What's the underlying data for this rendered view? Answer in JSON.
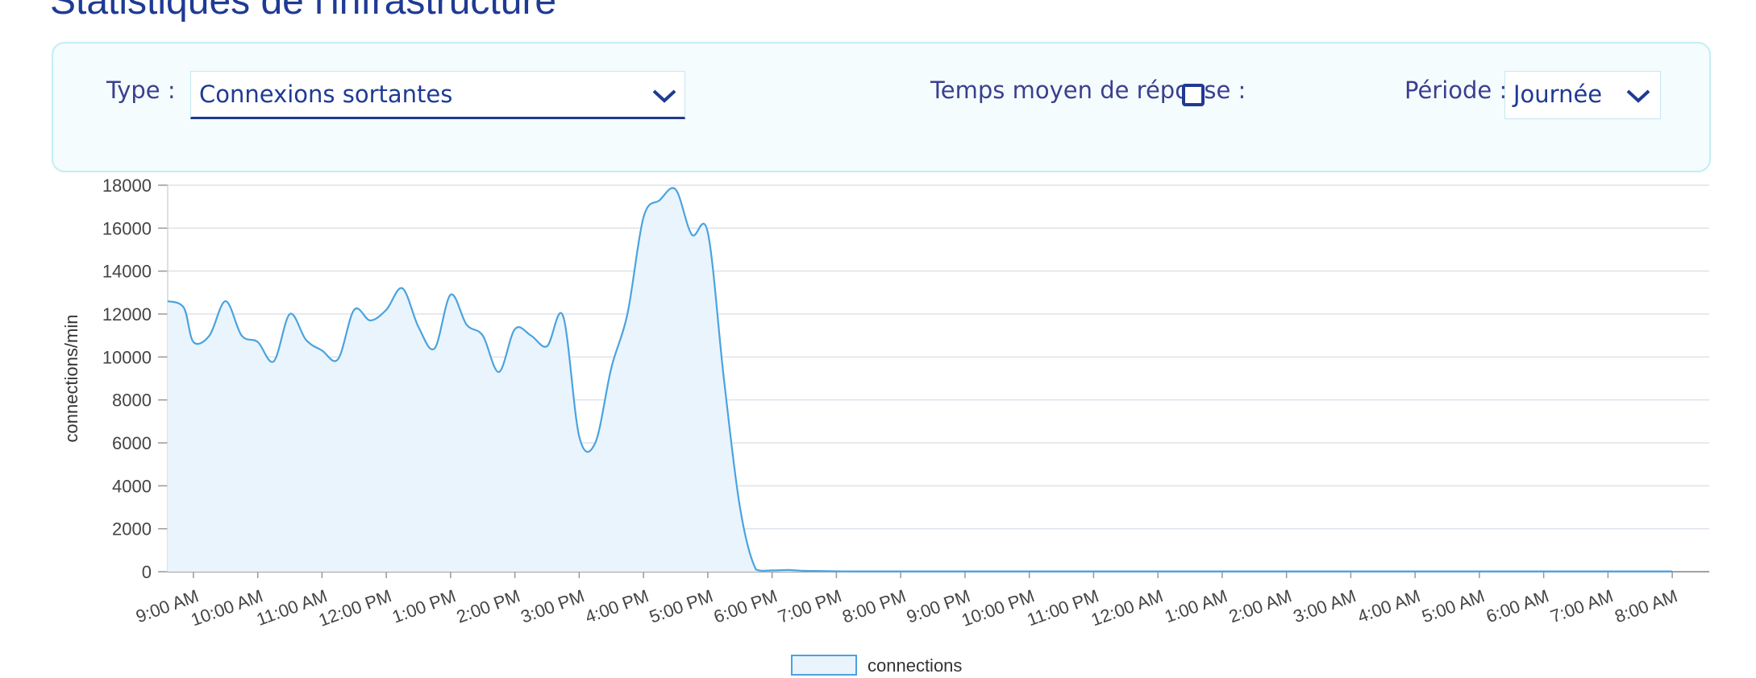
{
  "page": {
    "title": "Statistiques de l'infrastructure"
  },
  "filters": {
    "type": {
      "label": "Type :",
      "value": "Connexions sortantes"
    },
    "response_time": {
      "label": "Temps moyen de réponse :",
      "checked": false
    },
    "period": {
      "label": "Période :",
      "value": "Journée"
    }
  },
  "colors": {
    "accent": "#1f3a93",
    "line": "#4aa3df",
    "fill": "#eaf4fd",
    "panel": "#f4fcfd"
  },
  "icons": {
    "dropdown": "chevron-down-icon",
    "checkbox": "checkbox-icon"
  },
  "chart_data": {
    "type": "area",
    "ylabel": "connections/min",
    "ylim": [
      0,
      18000
    ],
    "yticks": [
      0,
      2000,
      4000,
      6000,
      8000,
      10000,
      12000,
      14000,
      16000,
      18000
    ],
    "x_tick_labels": [
      "9:00 AM",
      "10:00 AM",
      "11:00 AM",
      "12:00 PM",
      "1:00 PM",
      "2:00 PM",
      "3:00 PM",
      "4:00 PM",
      "5:00 PM",
      "6:00 PM",
      "7:00 PM",
      "8:00 PM",
      "9:00 PM",
      "10:00 PM",
      "11:00 PM",
      "12:00 AM",
      "1:00 AM",
      "2:00 AM",
      "3:00 AM",
      "4:00 AM",
      "5:00 AM",
      "6:00 AM",
      "7:00 AM",
      "8:00 AM"
    ],
    "legend": "bottom-center",
    "grid": true,
    "series": [
      {
        "name": "connections",
        "x_hours": [
          8.6,
          8.85,
          9.0,
          9.25,
          9.5,
          9.75,
          10.0,
          10.25,
          10.5,
          10.75,
          11.0,
          11.25,
          11.5,
          11.75,
          12.0,
          12.25,
          12.5,
          12.75,
          13.0,
          13.25,
          13.5,
          13.75,
          14.0,
          14.25,
          14.5,
          14.75,
          15.0,
          15.25,
          15.5,
          15.75,
          16.0,
          16.25,
          16.5,
          16.75,
          17.0,
          17.25,
          17.5,
          17.75,
          18.0,
          18.25,
          18.5,
          18.75,
          19.0,
          19.25,
          19.5,
          19.75,
          19.9,
          20.0,
          20.05,
          20.5,
          21.0,
          22.0,
          23.0,
          24.0,
          25.0,
          26.0,
          27.0,
          28.0,
          29.0,
          30.0,
          31.0,
          32.0
        ],
        "values": [
          12600,
          12300,
          10700,
          11000,
          12600,
          11000,
          10700,
          9800,
          12000,
          10800,
          10300,
          9900,
          12200,
          11700,
          12200,
          13200,
          11400,
          10400,
          12900,
          11500,
          11000,
          9300,
          11300,
          11000,
          10500,
          11900,
          6300,
          6000,
          9500,
          12000,
          16500,
          17300,
          17800,
          15700,
          15800,
          9000,
          3000,
          100,
          60,
          80,
          40,
          30,
          20,
          15,
          15,
          15,
          15,
          15,
          15,
          15,
          15,
          15,
          15,
          15,
          15,
          15,
          15,
          15,
          15,
          15,
          15,
          15
        ]
      }
    ]
  }
}
